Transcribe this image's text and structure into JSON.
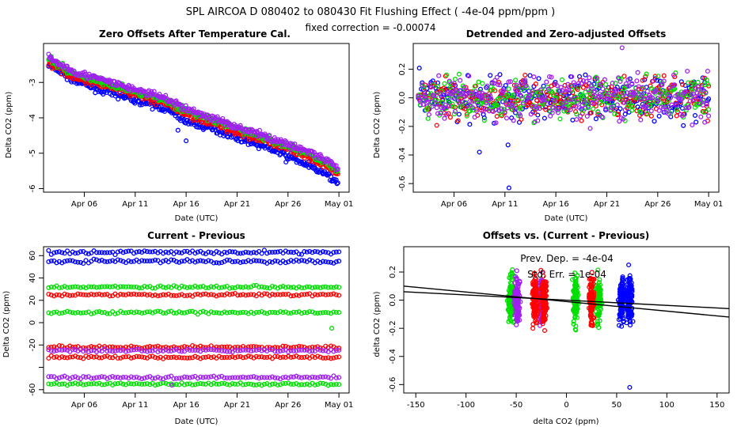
{
  "page": {
    "title": "SPL   AIRCOA D   080402 to 080430   Fit Flushing Effect ( -4e-04 ppm/ppm )",
    "subtitle": "fixed correction = -0.00074"
  },
  "colors": {
    "blue": "#0000ff",
    "red": "#ff0000",
    "green": "#00e000",
    "purple": "#a020f0"
  },
  "chart_data": [
    {
      "id": "tl",
      "type": "scatter",
      "title": "Zero Offsets After Temperature Cal.",
      "xlabel": "Date (UTC)",
      "ylabel": "Delta CO2 (ppm)",
      "xlim": [
        0,
        30
      ],
      "ylim": [
        -6.1,
        -1.9
      ],
      "xticks": [
        {
          "v": 4,
          "label": "Apr 06"
        },
        {
          "v": 9,
          "label": "Apr 11"
        },
        {
          "v": 14,
          "label": "Apr 16"
        },
        {
          "v": 19,
          "label": "Apr 21"
        },
        {
          "v": 24,
          "label": "Apr 26"
        },
        {
          "v": 29,
          "label": "May 01"
        }
      ],
      "yticks": [
        {
          "v": -6,
          "label": "-6"
        },
        {
          "v": -5,
          "label": "-5"
        },
        {
          "v": -4,
          "label": "-4"
        },
        {
          "v": -3,
          "label": "-3"
        }
      ],
      "series": [
        {
          "name": "blue",
          "color": "#0000ff",
          "x": [
            0.5,
            3,
            6,
            9,
            12,
            14,
            17,
            20,
            23,
            26,
            28,
            28.9
          ],
          "y": [
            -2.5,
            -2.95,
            -3.25,
            -3.5,
            -3.75,
            -4.1,
            -4.35,
            -4.65,
            -4.95,
            -5.35,
            -5.65,
            -5.85
          ]
        },
        {
          "name": "red",
          "color": "#ff0000",
          "x": [
            0.5,
            3,
            6,
            9,
            12,
            14,
            17,
            20,
            23,
            26,
            28,
            28.9
          ],
          "y": [
            -2.45,
            -2.85,
            -3.1,
            -3.35,
            -3.6,
            -3.9,
            -4.2,
            -4.5,
            -4.8,
            -5.1,
            -5.4,
            -5.6
          ]
        },
        {
          "name": "green",
          "color": "#00e000",
          "x": [
            0.5,
            3,
            6,
            9,
            12,
            14,
            17,
            20,
            23,
            26,
            28,
            28.9
          ],
          "y": [
            -2.35,
            -2.75,
            -3.0,
            -3.25,
            -3.5,
            -3.8,
            -4.1,
            -4.4,
            -4.7,
            -5.0,
            -5.3,
            -5.55
          ]
        },
        {
          "name": "purple",
          "color": "#a020f0",
          "x": [
            0.5,
            3,
            6,
            9,
            12,
            14,
            17,
            20,
            23,
            26,
            28,
            28.9
          ],
          "y": [
            -2.3,
            -2.7,
            -2.95,
            -3.2,
            -3.45,
            -3.75,
            -4.05,
            -4.35,
            -4.65,
            -4.95,
            -5.25,
            -5.45
          ]
        }
      ]
    },
    {
      "id": "tr",
      "type": "scatter",
      "title": "Detrended and Zero-adjusted Offsets",
      "xlabel": "Date (UTC)",
      "ylabel": "Delta CO2 (ppm)",
      "xlim": [
        0,
        30
      ],
      "ylim": [
        -0.66,
        0.38
      ],
      "xticks": [
        {
          "v": 4,
          "label": "Apr 06"
        },
        {
          "v": 9,
          "label": "Apr 11"
        },
        {
          "v": 14,
          "label": "Apr 16"
        },
        {
          "v": 19,
          "label": "Apr 21"
        },
        {
          "v": 24,
          "label": "Apr 26"
        },
        {
          "v": 29,
          "label": "May 01"
        }
      ],
      "yticks": [
        {
          "v": -0.6,
          "label": "-0.6"
        },
        {
          "v": -0.4,
          "label": "-0.4"
        },
        {
          "v": -0.2,
          "label": "-0.2"
        },
        {
          "v": 0,
          "label": "0.0"
        },
        {
          "v": 0.2,
          "label": "0.2"
        }
      ],
      "series": [
        {
          "name": "blue",
          "color": "#0000ff",
          "x": [
            0.5,
            29
          ],
          "y": [
            0,
            0
          ],
          "spread": 0.08,
          "outliers": [
            [
              9.3,
              -0.33
            ],
            [
              9.4,
              -0.63
            ],
            [
              6.5,
              -0.38
            ]
          ]
        },
        {
          "name": "red",
          "color": "#ff0000",
          "x": [
            0.5,
            29
          ],
          "y": [
            0,
            0
          ],
          "spread": 0.07
        },
        {
          "name": "green",
          "color": "#00e000",
          "x": [
            0.5,
            29
          ],
          "y": [
            0,
            0
          ],
          "spread": 0.07
        },
        {
          "name": "purple",
          "color": "#a020f0",
          "x": [
            0.5,
            29
          ],
          "y": [
            0,
            0
          ],
          "spread": 0.08,
          "outliers": [
            [
              20.5,
              0.35
            ]
          ]
        }
      ]
    },
    {
      "id": "bl",
      "type": "scatter",
      "title": "Current - Previous",
      "xlabel": "Date (UTC)",
      "ylabel": "Delta CO2 (ppm)",
      "xlim": [
        0,
        30
      ],
      "ylim": [
        -63,
        68
      ],
      "xticks": [
        {
          "v": 4,
          "label": "Apr 06"
        },
        {
          "v": 9,
          "label": "Apr 11"
        },
        {
          "v": 14,
          "label": "Apr 16"
        },
        {
          "v": 19,
          "label": "Apr 21"
        },
        {
          "v": 24,
          "label": "Apr 26"
        },
        {
          "v": 29,
          "label": "May 01"
        }
      ],
      "yticks": [
        {
          "v": -60,
          "label": "-60"
        },
        {
          "v": -40,
          "label": ""
        },
        {
          "v": -20,
          "label": "-20"
        },
        {
          "v": 0,
          "label": "0"
        },
        {
          "v": 20,
          "label": "20"
        },
        {
          "v": 40,
          "label": "40"
        },
        {
          "v": 60,
          "label": "60"
        }
      ],
      "series": [
        {
          "name": "blue",
          "color": "#0000ff",
          "levels": [
            63,
            55
          ]
        },
        {
          "name": "green",
          "color": "#00e000",
          "levels": [
            32,
            9,
            -55
          ]
        },
        {
          "name": "red",
          "color": "#ff0000",
          "levels": [
            25,
            -22,
            -31
          ]
        },
        {
          "name": "purple",
          "color": "#a020f0",
          "levels": [
            -49,
            -25
          ]
        }
      ]
    },
    {
      "id": "br",
      "type": "scatter",
      "title": "Offsets vs. (Current - Previous)",
      "xlabel": "delta CO2 (ppm)",
      "ylabel": "delta CO2 (ppm)",
      "xlim": [
        -162,
        162
      ],
      "ylim": [
        -0.66,
        0.38
      ],
      "xticks": [
        {
          "v": -150,
          "label": "-150"
        },
        {
          "v": -100,
          "label": "-100"
        },
        {
          "v": -50,
          "label": "-50"
        },
        {
          "v": 0,
          "label": "0"
        },
        {
          "v": 50,
          "label": "50"
        },
        {
          "v": 100,
          "label": "100"
        },
        {
          "v": 150,
          "label": "150"
        }
      ],
      "yticks": [
        {
          "v": -0.6,
          "label": "-0.6"
        },
        {
          "v": -0.4,
          "label": "-0.4"
        },
        {
          "v": -0.2,
          "label": "-0.2"
        },
        {
          "v": 0,
          "label": "0.0"
        },
        {
          "v": 0.2,
          "label": "0.2"
        }
      ],
      "annotations": [
        "Prev. Dep. =  -4e-04",
        "Std. Err. =  1e-04"
      ],
      "fit_lines": [
        {
          "x": [
            -162,
            162
          ],
          "y": [
            0.1,
            -0.12
          ]
        },
        {
          "x": [
            -162,
            162
          ],
          "y": [
            0.06,
            -0.06
          ]
        }
      ],
      "series": [
        {
          "name": "green",
          "color": "#00e000",
          "clusters": [
            -55,
            9,
            32
          ]
        },
        {
          "name": "purple",
          "color": "#a020f0",
          "clusters": [
            -49,
            -25
          ]
        },
        {
          "name": "red",
          "color": "#ff0000",
          "clusters": [
            -31,
            -22,
            25
          ]
        },
        {
          "name": "blue",
          "color": "#0000ff",
          "clusters": [
            55,
            63
          ]
        }
      ]
    }
  ]
}
